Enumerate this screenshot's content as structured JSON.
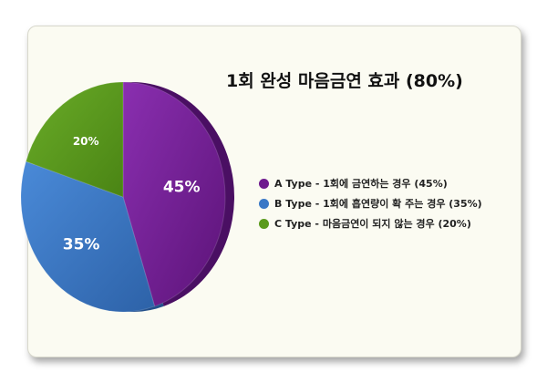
{
  "chart_data": {
    "type": "pie",
    "title": "1회 완성 마음금연 효과 (80%)",
    "categories": [
      "A Type - 1회에 금연하는 경우 (45%)",
      "B Type - 1회에 흡연량이 확 주는 경우 (35%)",
      "C Type - 마음금연이 되지 않는 경우 (20%)"
    ],
    "values": [
      45,
      35,
      20
    ],
    "slice_labels": [
      "45%",
      "35%",
      "20%"
    ],
    "colors": [
      "#6e1a8e",
      "#3a78c6",
      "#5a9a1c"
    ],
    "legend_position": "right"
  }
}
